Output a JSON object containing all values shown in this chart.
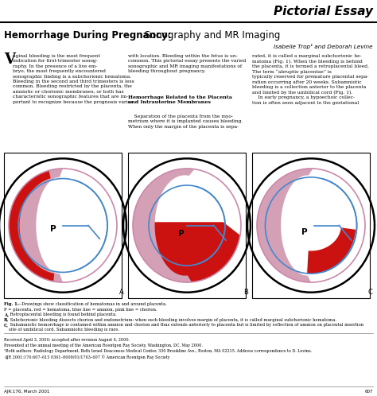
{
  "title_right": "Pictorial Essay",
  "title_main_bold": "Hemorrhage During Pregnancy:",
  "title_main_regular": " Sonography and MR Imaging",
  "authors": "Isabelle Trop¹ and Deborah Levine",
  "color_hematoma": "#cc1111",
  "color_placenta": "#d4a0b5",
  "color_amnion": "#4488cc",
  "color_chorion": "#cc88aa",
  "color_bg": "#ffffff",
  "panel_letters": [
    "A",
    "B",
    "C"
  ]
}
